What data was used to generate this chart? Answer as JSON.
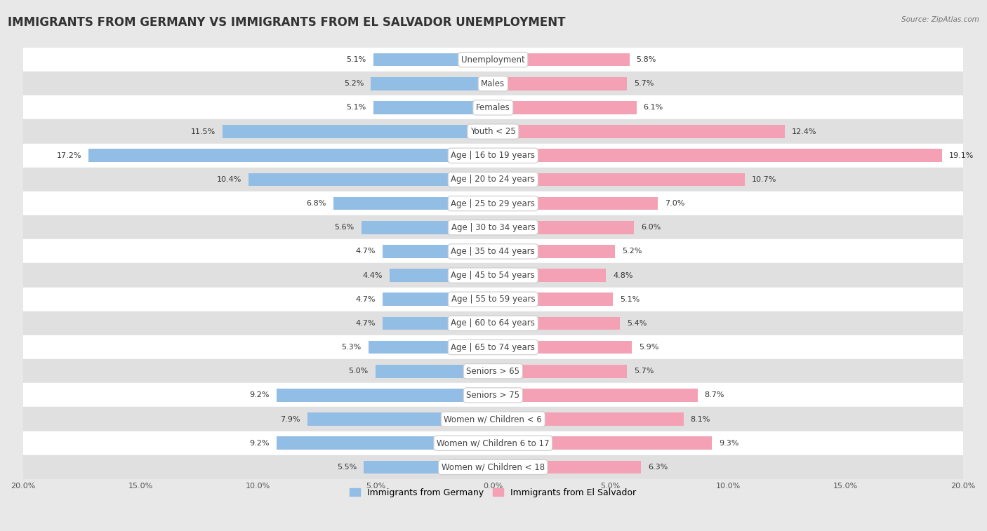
{
  "title": "IMMIGRANTS FROM GERMANY VS IMMIGRANTS FROM EL SALVADOR UNEMPLOYMENT",
  "source": "Source: ZipAtlas.com",
  "categories": [
    "Unemployment",
    "Males",
    "Females",
    "Youth < 25",
    "Age | 16 to 19 years",
    "Age | 20 to 24 years",
    "Age | 25 to 29 years",
    "Age | 30 to 34 years",
    "Age | 35 to 44 years",
    "Age | 45 to 54 years",
    "Age | 55 to 59 years",
    "Age | 60 to 64 years",
    "Age | 65 to 74 years",
    "Seniors > 65",
    "Seniors > 75",
    "Women w/ Children < 6",
    "Women w/ Children 6 to 17",
    "Women w/ Children < 18"
  ],
  "germany_values": [
    5.1,
    5.2,
    5.1,
    11.5,
    17.2,
    10.4,
    6.8,
    5.6,
    4.7,
    4.4,
    4.7,
    4.7,
    5.3,
    5.0,
    9.2,
    7.9,
    9.2,
    5.5
  ],
  "elsalvador_values": [
    5.8,
    5.7,
    6.1,
    12.4,
    19.1,
    10.7,
    7.0,
    6.0,
    5.2,
    4.8,
    5.1,
    5.4,
    5.9,
    5.7,
    8.7,
    8.1,
    9.3,
    6.3
  ],
  "germany_color": "#92bde4",
  "elsalvador_color": "#f4a0b5",
  "germany_label": "Immigrants from Germany",
  "elsalvador_label": "Immigrants from El Salvador",
  "xlim": 20.0,
  "background_color": "#e8e8e8",
  "row_white_color": "#ffffff",
  "row_gray_color": "#e0e0e0",
  "title_fontsize": 12,
  "label_fontsize": 8.5,
  "value_fontsize": 8,
  "bar_height": 0.55
}
